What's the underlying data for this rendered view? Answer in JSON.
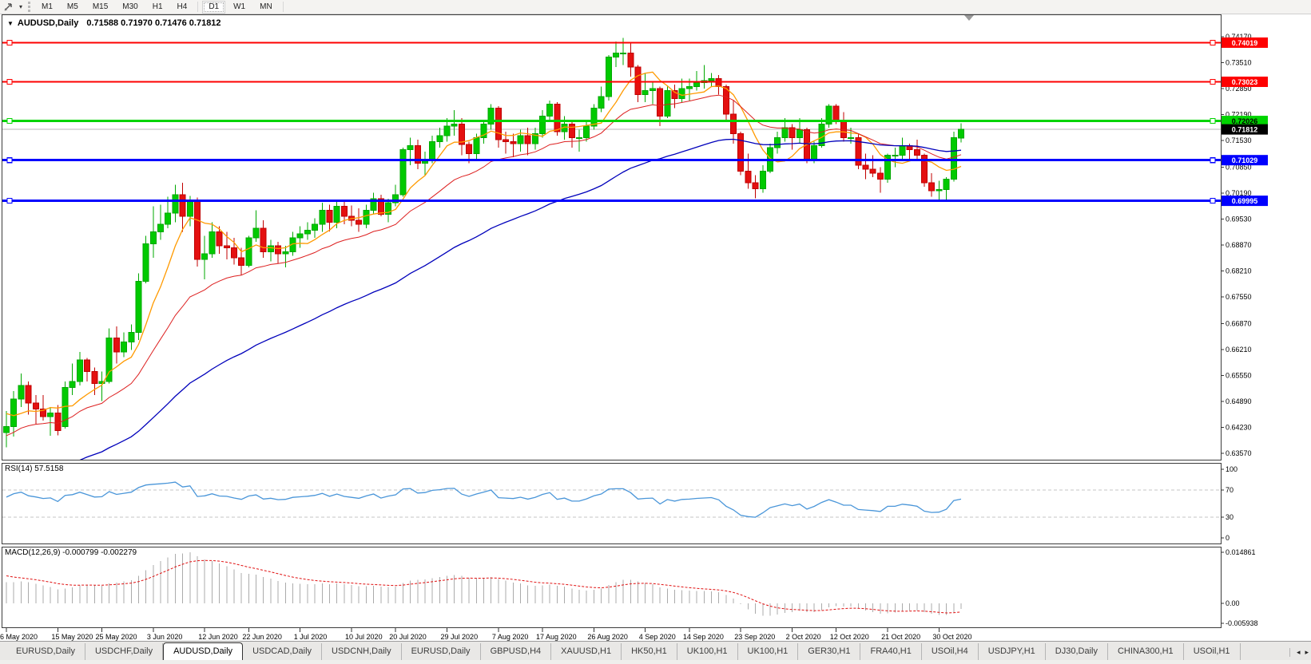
{
  "toolbar": {
    "cursor_tool_name": "cursor-tool",
    "timeframes": [
      "M1",
      "M5",
      "M15",
      "M30",
      "H1",
      "H4",
      "D1",
      "W1",
      "MN"
    ],
    "active_timeframe": "D1"
  },
  "chart_header": {
    "symbol": "AUDUSD,Daily",
    "ohlc": "0.71588 0.71970 0.71476 0.71812"
  },
  "chart_data": {
    "type": "candlestick",
    "symbol": "AUDUSD",
    "period": "Daily",
    "current_bar": {
      "open": 0.71588,
      "high": 0.7197,
      "low": 0.71476,
      "close": 0.71812
    },
    "price_axis": {
      "ticks": [
        "0.74170",
        "0.73510",
        "0.72850",
        "0.72190",
        "0.71530",
        "0.70850",
        "0.70190",
        "0.69530",
        "0.68870",
        "0.68210",
        "0.67550",
        "0.66870",
        "0.66210",
        "0.65550",
        "0.64890",
        "0.64230",
        "0.63570"
      ],
      "top_price": 0.7417,
      "bottom_price": 0.6357
    },
    "levels": [
      {
        "price": 0.74019,
        "label": "0.74019",
        "color": "#fe0000",
        "text_color": "#ffffff",
        "width": 2
      },
      {
        "price": 0.73023,
        "label": "0.73023",
        "color": "#fe0000",
        "text_color": "#ffffff",
        "width": 2
      },
      {
        "price": 0.72026,
        "label": "0.72026",
        "color": "#00d400",
        "text_color": "#000000",
        "width": 3
      },
      {
        "price": 0.71029,
        "label": "0.71029",
        "color": "#0000fe",
        "text_color": "#ffffff",
        "width": 3
      },
      {
        "price": 0.69995,
        "label": "0.69995",
        "color": "#0000fe",
        "text_color": "#ffffff",
        "width": 3
      }
    ],
    "current_price_line": {
      "price": 0.71812,
      "label": "0.71812",
      "line_color": "#b6b6b6",
      "badge_color": "#000000",
      "text_color": "#ffffff"
    },
    "dates": [
      {
        "label": "6 May 2020",
        "index": 0
      },
      {
        "label": "15 May 2020",
        "index": 7
      },
      {
        "label": "25 May 2020",
        "index": 13
      },
      {
        "label": "3 Jun 2020",
        "index": 20
      },
      {
        "label": "12 Jun 2020",
        "index": 27
      },
      {
        "label": "22 Jun 2020",
        "index": 33
      },
      {
        "label": "1 Jul 2020",
        "index": 40
      },
      {
        "label": "10 Jul 2020",
        "index": 47
      },
      {
        "label": "20 Jul 2020",
        "index": 53
      },
      {
        "label": "29 Jul 2020",
        "index": 60
      },
      {
        "label": "7 Aug 2020",
        "index": 67
      },
      {
        "label": "17 Aug 2020",
        "index": 73
      },
      {
        "label": "26 Aug 2020",
        "index": 80
      },
      {
        "label": "4 Sep 2020",
        "index": 87
      },
      {
        "label": "14 Sep 2020",
        "index": 93
      },
      {
        "label": "23 Sep 2020",
        "index": 100
      },
      {
        "label": "2 Oct 2020",
        "index": 107
      },
      {
        "label": "12 Oct 2020",
        "index": 113
      },
      {
        "label": "21 Oct 2020",
        "index": 120
      },
      {
        "label": "30 Oct 2020",
        "index": 127
      }
    ],
    "candles": [
      [
        0.641,
        0.6465,
        0.6372,
        0.6425
      ],
      [
        0.6425,
        0.6515,
        0.64,
        0.6495
      ],
      [
        0.6495,
        0.656,
        0.6475,
        0.653
      ],
      [
        0.653,
        0.654,
        0.6455,
        0.6485
      ],
      [
        0.6485,
        0.6505,
        0.643,
        0.647
      ],
      [
        0.647,
        0.6505,
        0.644,
        0.645
      ],
      [
        0.645,
        0.6475,
        0.6402,
        0.646
      ],
      [
        0.646,
        0.648,
        0.6403,
        0.6415
      ],
      [
        0.6425,
        0.654,
        0.642,
        0.6525
      ],
      [
        0.6525,
        0.6585,
        0.6505,
        0.654
      ],
      [
        0.654,
        0.6615,
        0.653,
        0.6595
      ],
      [
        0.6595,
        0.66,
        0.654,
        0.6565
      ],
      [
        0.6565,
        0.6575,
        0.6505,
        0.6535
      ],
      [
        0.6535,
        0.6565,
        0.649,
        0.654
      ],
      [
        0.654,
        0.6675,
        0.6535,
        0.665
      ],
      [
        0.665,
        0.668,
        0.6585,
        0.6615
      ],
      [
        0.6615,
        0.6665,
        0.6602,
        0.664
      ],
      [
        0.664,
        0.6685,
        0.662,
        0.6665
      ],
      [
        0.6665,
        0.6815,
        0.6645,
        0.6795
      ],
      [
        0.6795,
        0.691,
        0.679,
        0.689
      ],
      [
        0.689,
        0.6985,
        0.6855,
        0.692
      ],
      [
        0.692,
        0.699,
        0.69,
        0.694
      ],
      [
        0.694,
        0.701,
        0.693,
        0.6968
      ],
      [
        0.6968,
        0.704,
        0.6945,
        0.7015
      ],
      [
        0.7015,
        0.7045,
        0.692,
        0.696
      ],
      [
        0.696,
        0.7012,
        0.6935,
        0.7
      ],
      [
        0.7,
        0.7008,
        0.6832,
        0.685
      ],
      [
        0.685,
        0.691,
        0.68,
        0.6865
      ],
      [
        0.6865,
        0.6945,
        0.6855,
        0.692
      ],
      [
        0.692,
        0.6935,
        0.6865,
        0.6885
      ],
      [
        0.6885,
        0.692,
        0.685,
        0.688
      ],
      [
        0.688,
        0.6905,
        0.6837,
        0.6855
      ],
      [
        0.6855,
        0.688,
        0.681,
        0.6835
      ],
      [
        0.6835,
        0.691,
        0.683,
        0.6905
      ],
      [
        0.6905,
        0.6975,
        0.6895,
        0.693
      ],
      [
        0.693,
        0.695,
        0.6855,
        0.687
      ],
      [
        0.687,
        0.69,
        0.6845,
        0.6885
      ],
      [
        0.6885,
        0.6895,
        0.684,
        0.6865
      ],
      [
        0.6865,
        0.6885,
        0.683,
        0.687
      ],
      [
        0.687,
        0.692,
        0.686,
        0.6905
      ],
      [
        0.6905,
        0.6935,
        0.688,
        0.6915
      ],
      [
        0.6915,
        0.6945,
        0.69,
        0.6925
      ],
      [
        0.6925,
        0.6955,
        0.6905,
        0.694
      ],
      [
        0.694,
        0.6995,
        0.692,
        0.6975
      ],
      [
        0.6975,
        0.699,
        0.6922,
        0.6945
      ],
      [
        0.6945,
        0.7,
        0.693,
        0.6985
      ],
      [
        0.6985,
        0.7,
        0.694,
        0.696
      ],
      [
        0.696,
        0.6988,
        0.6935,
        0.695
      ],
      [
        0.695,
        0.698,
        0.692,
        0.694
      ],
      [
        0.694,
        0.699,
        0.693,
        0.6975
      ],
      [
        0.6975,
        0.702,
        0.6965,
        0.7005
      ],
      [
        0.7005,
        0.7015,
        0.696,
        0.6965
      ],
      [
        0.6965,
        0.7005,
        0.6945,
        0.6995
      ],
      [
        0.6995,
        0.704,
        0.6985,
        0.7015
      ],
      [
        0.7015,
        0.7135,
        0.701,
        0.713
      ],
      [
        0.713,
        0.716,
        0.709,
        0.714
      ],
      [
        0.714,
        0.7155,
        0.708,
        0.7095
      ],
      [
        0.7095,
        0.7125,
        0.7065,
        0.7105
      ],
      [
        0.7105,
        0.7165,
        0.7095,
        0.715
      ],
      [
        0.715,
        0.7185,
        0.7135,
        0.7165
      ],
      [
        0.7165,
        0.721,
        0.715,
        0.719
      ],
      [
        0.719,
        0.723,
        0.7165,
        0.7195
      ],
      [
        0.7195,
        0.721,
        0.7115,
        0.7143
      ],
      [
        0.7143,
        0.715,
        0.7095,
        0.712
      ],
      [
        0.712,
        0.717,
        0.7105,
        0.716
      ],
      [
        0.716,
        0.7205,
        0.7145,
        0.7195
      ],
      [
        0.7195,
        0.7245,
        0.718,
        0.7235
      ],
      [
        0.7235,
        0.724,
        0.7135,
        0.7155
      ],
      [
        0.7155,
        0.7175,
        0.712,
        0.715
      ],
      [
        0.715,
        0.717,
        0.711,
        0.7145
      ],
      [
        0.7145,
        0.718,
        0.7125,
        0.7165
      ],
      [
        0.7165,
        0.7185,
        0.7115,
        0.7145
      ],
      [
        0.7145,
        0.7185,
        0.713,
        0.717
      ],
      [
        0.717,
        0.723,
        0.716,
        0.7215
      ],
      [
        0.7215,
        0.7255,
        0.72,
        0.7245
      ],
      [
        0.7245,
        0.725,
        0.7165,
        0.7175
      ],
      [
        0.7175,
        0.7215,
        0.7155,
        0.7195
      ],
      [
        0.7195,
        0.7205,
        0.7135,
        0.716
      ],
      [
        0.716,
        0.718,
        0.7125,
        0.716
      ],
      [
        0.716,
        0.72,
        0.715,
        0.719
      ],
      [
        0.719,
        0.7245,
        0.718,
        0.7235
      ],
      [
        0.7235,
        0.729,
        0.7225,
        0.7265
      ],
      [
        0.7265,
        0.737,
        0.7255,
        0.7365
      ],
      [
        0.7365,
        0.7405,
        0.734,
        0.7375
      ],
      [
        0.7375,
        0.7414,
        0.7345,
        0.7375
      ],
      [
        0.7375,
        0.74,
        0.7315,
        0.734
      ],
      [
        0.734,
        0.7345,
        0.725,
        0.727
      ],
      [
        0.727,
        0.7325,
        0.725,
        0.728
      ],
      [
        0.728,
        0.73,
        0.7245,
        0.7285
      ],
      [
        0.7285,
        0.729,
        0.719,
        0.7215
      ],
      [
        0.7215,
        0.729,
        0.721,
        0.728
      ],
      [
        0.728,
        0.7295,
        0.7235,
        0.726
      ],
      [
        0.726,
        0.731,
        0.725,
        0.7285
      ],
      [
        0.7285,
        0.731,
        0.7255,
        0.729
      ],
      [
        0.729,
        0.733,
        0.728,
        0.73
      ],
      [
        0.73,
        0.7345,
        0.7285,
        0.7305
      ],
      [
        0.7305,
        0.7325,
        0.729,
        0.731
      ],
      [
        0.731,
        0.732,
        0.727,
        0.729
      ],
      [
        0.729,
        0.7295,
        0.72,
        0.722
      ],
      [
        0.722,
        0.7255,
        0.7145,
        0.717
      ],
      [
        0.717,
        0.7175,
        0.7065,
        0.7075
      ],
      [
        0.7075,
        0.712,
        0.703,
        0.7045
      ],
      [
        0.7045,
        0.7065,
        0.7006,
        0.703
      ],
      [
        0.703,
        0.709,
        0.702,
        0.7075
      ],
      [
        0.7075,
        0.7145,
        0.707,
        0.7135
      ],
      [
        0.7135,
        0.7175,
        0.712,
        0.716
      ],
      [
        0.716,
        0.721,
        0.715,
        0.7185
      ],
      [
        0.7185,
        0.7195,
        0.713,
        0.716
      ],
      [
        0.716,
        0.721,
        0.7145,
        0.718
      ],
      [
        0.718,
        0.7185,
        0.7095,
        0.7105
      ],
      [
        0.7105,
        0.715,
        0.7095,
        0.714
      ],
      [
        0.714,
        0.721,
        0.7135,
        0.7195
      ],
      [
        0.7195,
        0.7245,
        0.7185,
        0.724
      ],
      [
        0.724,
        0.7245,
        0.7195,
        0.7205
      ],
      [
        0.7205,
        0.7225,
        0.715,
        0.716
      ],
      [
        0.716,
        0.7185,
        0.7145,
        0.716
      ],
      [
        0.716,
        0.717,
        0.708,
        0.709
      ],
      [
        0.709,
        0.712,
        0.7055,
        0.708
      ],
      [
        0.708,
        0.7115,
        0.706,
        0.707
      ],
      [
        0.707,
        0.7085,
        0.702,
        0.7055
      ],
      [
        0.7055,
        0.712,
        0.7045,
        0.7115
      ],
      [
        0.7115,
        0.7135,
        0.7085,
        0.7115
      ],
      [
        0.7115,
        0.716,
        0.7105,
        0.714
      ],
      [
        0.714,
        0.7145,
        0.71,
        0.713
      ],
      [
        0.713,
        0.7155,
        0.7105,
        0.7115
      ],
      [
        0.7115,
        0.712,
        0.7035,
        0.7045
      ],
      [
        0.7045,
        0.707,
        0.701,
        0.7025
      ],
      [
        0.7025,
        0.705,
        0.7002,
        0.7028
      ],
      [
        0.7028,
        0.706,
        0.7002,
        0.7055
      ],
      [
        0.7055,
        0.7175,
        0.7048,
        0.716
      ],
      [
        0.71588,
        0.7197,
        0.71476,
        0.71812
      ]
    ],
    "moving_averages": {
      "warmup_closes": [
        0.603,
        0.608,
        0.613,
        0.61,
        0.616,
        0.621,
        0.626,
        0.63,
        0.628,
        0.633,
        0.637,
        0.634,
        0.63,
        0.635,
        0.639,
        0.643,
        0.64,
        0.637,
        0.642,
        0.646,
        0.651,
        0.648,
        0.645,
        0.649,
        0.653,
        0.649,
        0.644,
        0.648,
        0.643,
        0.641
      ],
      "fast": {
        "period": 7,
        "method": "sma",
        "color": "#ff9a00"
      },
      "mid": {
        "period": 21,
        "method": "ema",
        "color": "#dd2020"
      },
      "slow": {
        "period": 55,
        "method": "ema",
        "color": "#0000bb"
      }
    },
    "rsi": {
      "label": "RSI(14) 57.5158",
      "period": 14,
      "value": 57.5158,
      "color": "#4a96d9",
      "axis": [
        {
          "label": "100",
          "value": 100
        },
        {
          "label": "70",
          "value": 70
        },
        {
          "label": "30",
          "value": 30
        },
        {
          "label": "0",
          "value": 0
        }
      ],
      "dashed_levels": [
        70,
        30
      ]
    },
    "macd": {
      "label": "MACD(12,26,9) -0.000799 -0.002279",
      "fast": 12,
      "slow": 26,
      "signal": 9,
      "main_value": -0.000799,
      "signal_value": -0.002279,
      "hist_color": "#ababab",
      "signal_color": "#e01010",
      "axis": [
        {
          "label": "0.014861",
          "value": 1
        },
        {
          "label": "0.00",
          "value": 0
        },
        {
          "label": "-0.005938",
          "value": -0.3996
        }
      ]
    },
    "colors": {
      "bull_fill": "#00ca00",
      "bull_stroke": "#00a800",
      "bear_fill": "#e41010",
      "bear_stroke": "#c00000"
    }
  },
  "tabs": {
    "items": [
      "EURUSD,Daily",
      "USDCHF,Daily",
      "AUDUSD,Daily",
      "USDCAD,Daily",
      "USDCNH,Daily",
      "EURUSD,Daily",
      "GBPUSD,H4",
      "XAUUSD,H1",
      "HK50,H1",
      "UK100,H1",
      "UK100,H1",
      "GER30,H1",
      "FRA40,H1",
      "USOil,H4",
      "USDJPY,H1",
      "DJ30,Daily",
      "CHINA300,H1",
      "USOil,H1"
    ],
    "active_index": 2,
    "scroll_left": "◂",
    "scroll_right": "▸"
  }
}
